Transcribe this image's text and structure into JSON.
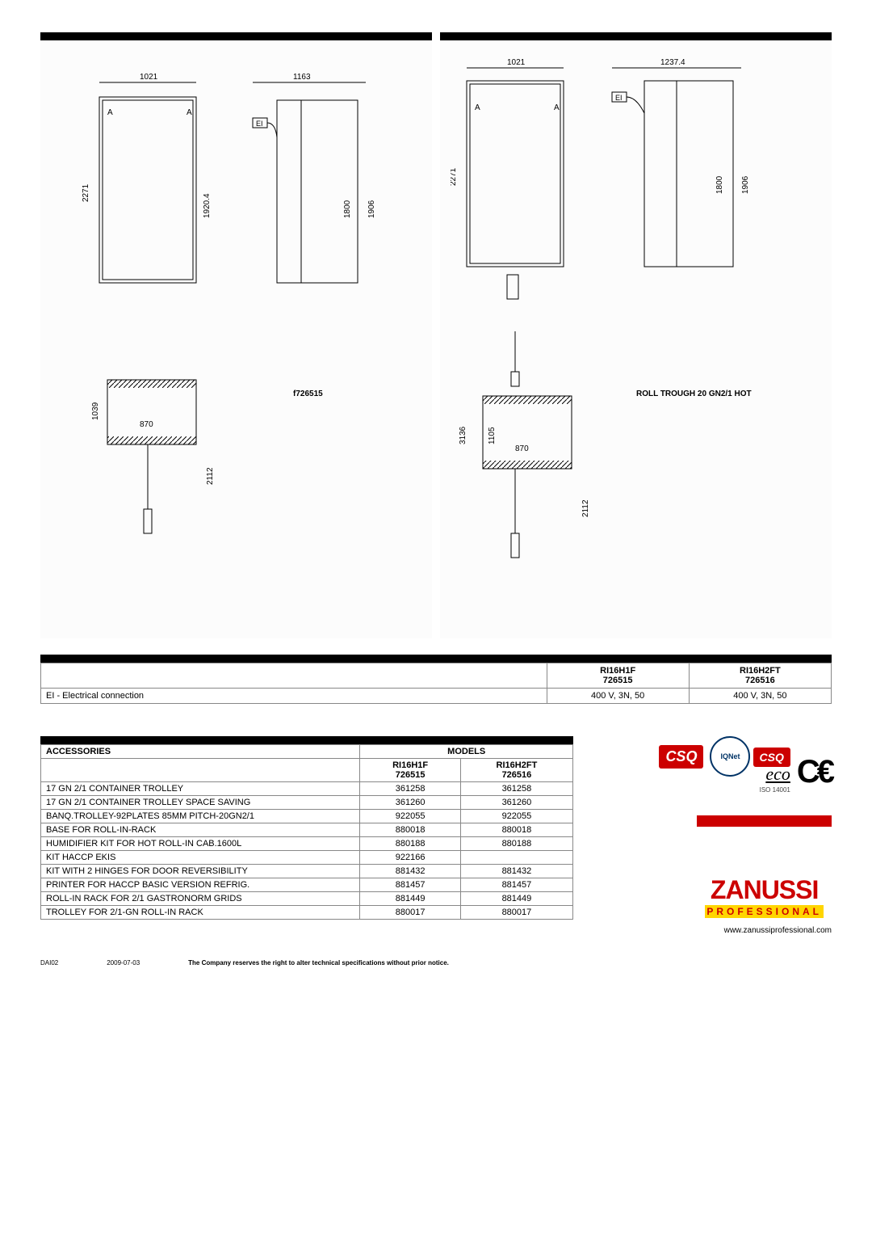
{
  "diagrams": {
    "left": {
      "model_label": "f726515",
      "dims": {
        "w_top": "1021",
        "w_side": "1163",
        "h_front": "2271",
        "h_inner": "1920.4",
        "h_side1": "1800",
        "h_side2": "1906",
        "base_h": "1039",
        "base_w": "870",
        "base_total": "2112"
      }
    },
    "right": {
      "title": "ROLL TROUGH 20 GN2/1 HOT",
      "dims": {
        "w_top": "1021",
        "w_side": "1237.4",
        "h_front": "2271",
        "h_side1": "1800",
        "h_side2": "1906",
        "stack_h": "3136",
        "base_h": "1105",
        "base_w": "870",
        "base_total": "2112"
      }
    }
  },
  "spec_table": {
    "models": [
      {
        "name": "RI16H1F",
        "code": "726515"
      },
      {
        "name": "RI16H2FT",
        "code": "726516"
      }
    ],
    "rows": [
      {
        "label": "EI - Electrical connection",
        "values": [
          "400 V, 3N, 50",
          "400 V, 3N, 50"
        ]
      }
    ]
  },
  "accessories": {
    "header": "ACCESSORIES",
    "models_header": "MODELS",
    "models": [
      {
        "name": "RI16H1F",
        "code": "726515"
      },
      {
        "name": "RI16H2FT",
        "code": "726516"
      }
    ],
    "rows": [
      {
        "label": "17 GN 2/1 CONTAINER TROLLEY",
        "v": [
          "361258",
          "361258"
        ]
      },
      {
        "label": "17 GN 2/1 CONTAINER TROLLEY SPACE SAVING",
        "v": [
          "361260",
          "361260"
        ]
      },
      {
        "label": "BANQ.TROLLEY-92PLATES 85MM PITCH-20GN2/1",
        "v": [
          "922055",
          "922055"
        ]
      },
      {
        "label": "BASE FOR ROLL-IN-RACK",
        "v": [
          "880018",
          "880018"
        ]
      },
      {
        "label": "HUMIDIFIER KIT FOR HOT ROLL-IN CAB.1600L",
        "v": [
          "880188",
          "880188"
        ]
      },
      {
        "label": "KIT HACCP EKIS",
        "v": [
          "922166",
          ""
        ]
      },
      {
        "label": "KIT WITH 2 HINGES FOR DOOR REVERSIBILITY",
        "v": [
          "881432",
          "881432"
        ]
      },
      {
        "label": "PRINTER FOR HACCP BASIC VERSION REFRIG.",
        "v": [
          "881457",
          "881457"
        ]
      },
      {
        "label": "ROLL-IN RACK FOR 2/1 GASTRONORM GRIDS",
        "v": [
          "881449",
          "881449"
        ]
      },
      {
        "label": "TROLLEY FOR 2/1-GN ROLL-IN RACK",
        "v": [
          "880017",
          "880017"
        ]
      }
    ]
  },
  "logos": {
    "csq": "CSQ",
    "iqnet": "IQNet",
    "eco": "eco",
    "iso": "ISO 14001",
    "ce": "CE",
    "brand": "ZANUSSI",
    "sub": "PROFESSIONAL",
    "url": "www.zanussiprofessional.com"
  },
  "footer": {
    "code": "DAI02",
    "date": "2009-07-03",
    "disclaimer": "The Company reserves the right to alter technical specifications without prior notice."
  },
  "style": {
    "black": "#000000",
    "red": "#c00000",
    "yellow": "#ffd500",
    "border_gray": "#888888"
  }
}
